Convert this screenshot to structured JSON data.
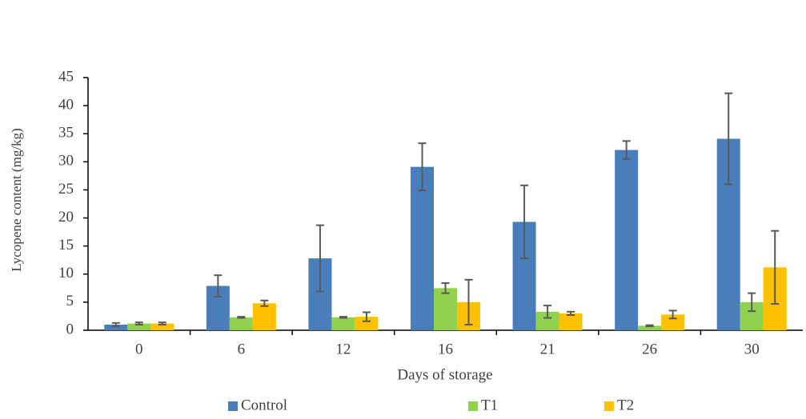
{
  "chart_data": {
    "type": "bar",
    "xlabel": "Days of storage",
    "ylabel": "Lycopene content (mg/kg)",
    "categories": [
      "0",
      "6",
      "12",
      "16",
      "21",
      "26",
      "30"
    ],
    "series": [
      {
        "name": "Control",
        "color": "#4a7ebb",
        "values": [
          1.0,
          7.9,
          12.8,
          29.1,
          19.3,
          32.1,
          34.1
        ],
        "errors": [
          0.3,
          1.9,
          5.9,
          4.2,
          6.5,
          1.6,
          8.1
        ]
      },
      {
        "name": "T1",
        "color": "#92d050",
        "values": [
          1.2,
          2.3,
          2.3,
          7.5,
          3.3,
          0.8,
          5.0
        ],
        "errors": [
          0.2,
          0.1,
          0.1,
          0.9,
          1.1,
          0.1,
          1.6
        ]
      },
      {
        "name": "T2",
        "color": "#ffc000",
        "values": [
          1.2,
          4.8,
          2.4,
          5.0,
          3.0,
          2.8,
          11.2
        ],
        "errors": [
          0.2,
          0.5,
          0.8,
          4.0,
          0.3,
          0.7,
          6.5
        ]
      }
    ],
    "ylim": [
      0,
      45
    ],
    "yticks": [
      0,
      5,
      10,
      15,
      20,
      25,
      30,
      35,
      40,
      45
    ],
    "grid": false,
    "legend": "bottom"
  }
}
